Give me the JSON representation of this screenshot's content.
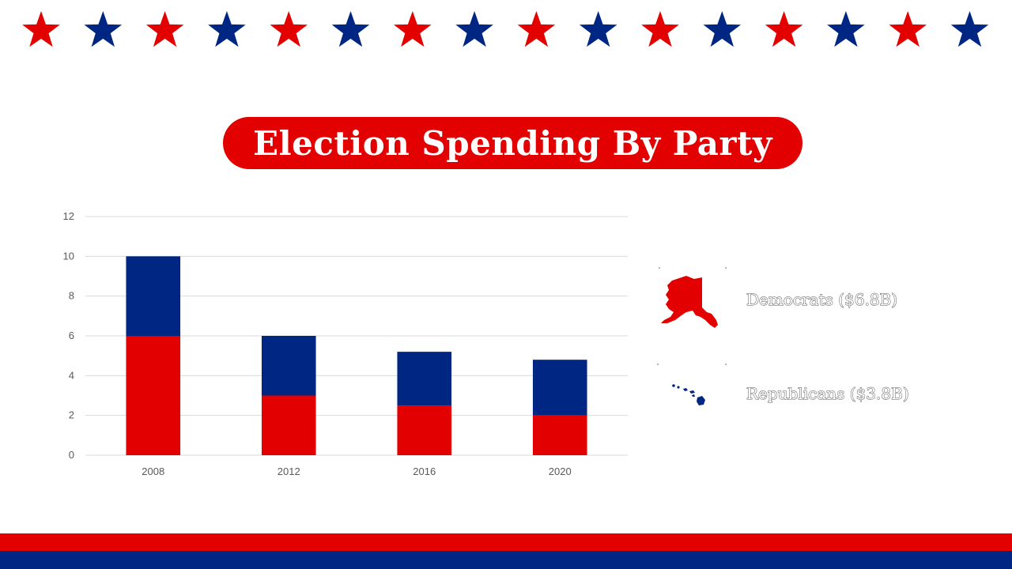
{
  "title": "Election Spending By Party",
  "colors": {
    "red": "#e30000",
    "blue": "#002684",
    "grid": "#d9d9d9",
    "tick": "#595959"
  },
  "star_count": 16,
  "legend": [
    {
      "label": "Democrats ($6.8B)",
      "icon": "alaska-map-icon",
      "color": "#e30000"
    },
    {
      "label": "Republicans ($3.8B)",
      "icon": "hawaii-map-icon",
      "color": "#002684"
    }
  ],
  "chart_data": {
    "type": "bar",
    "stacked": true,
    "categories": [
      "2008",
      "2012",
      "2016",
      "2020"
    ],
    "series": [
      {
        "values": [
          6,
          3,
          2.5,
          2
        ],
        "color": "#e30000"
      },
      {
        "values": [
          4,
          3,
          2.7,
          2.8
        ],
        "color": "#002684"
      }
    ],
    "yticks": [
      "0",
      "2",
      "4",
      "6",
      "8",
      "10",
      "12"
    ],
    "ylim": [
      0,
      12
    ],
    "grid": true
  }
}
